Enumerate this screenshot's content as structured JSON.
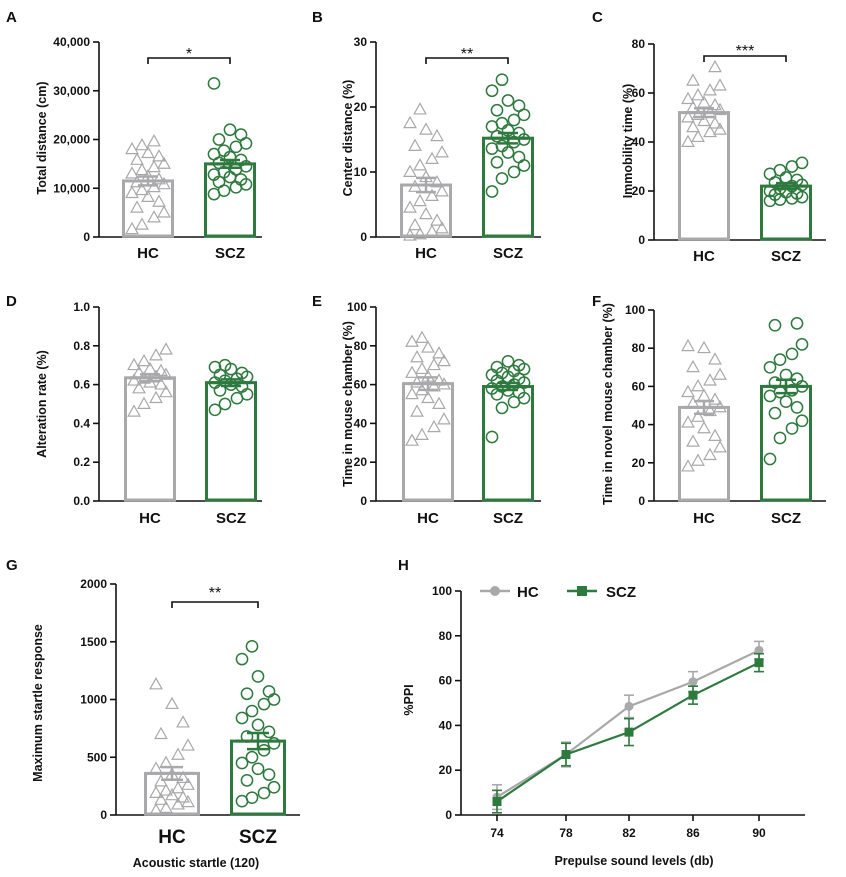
{
  "colors": {
    "hc": "#a9a9ab",
    "scz": "#2e7a3e",
    "text": "#111111"
  },
  "chart_data": [
    {
      "panel": "A",
      "type": "bar",
      "ylabel": "Total distance (cm)",
      "ylim": [
        0,
        40000
      ],
      "yticks": [
        0,
        10000,
        20000,
        30000,
        40000
      ],
      "ytick_labels": [
        "0",
        "10,000",
        "20,000",
        "30,000",
        "40,000"
      ],
      "categories": [
        "HC",
        "SCZ"
      ],
      "values": [
        11500,
        15000
      ],
      "sem": [
        900,
        800
      ],
      "significance": "*",
      "points": [
        [
          1600,
          2500,
          4000,
          5000,
          6000,
          7200,
          8200,
          9000,
          9600,
          10200,
          10800,
          11200,
          11800,
          12400,
          13000,
          13700,
          14300,
          15000,
          15800,
          16500,
          17200,
          18000,
          18800,
          19600
        ],
        [
          8800,
          9500,
          10200,
          10800,
          11300,
          11800,
          12300,
          12800,
          13300,
          13900,
          14500,
          15200,
          15800,
          16400,
          17000,
          17700,
          18500,
          19200,
          20000,
          21000,
          22000,
          31500
        ]
      ]
    },
    {
      "panel": "B",
      "type": "bar",
      "ylabel": "Center distance (%)",
      "ylim": [
        0,
        30
      ],
      "yticks": [
        0,
        10,
        20,
        30
      ],
      "ytick_labels": [
        "0",
        "10",
        "20",
        "30"
      ],
      "categories": [
        "HC",
        "SCZ"
      ],
      "values": [
        8,
        15.2
      ],
      "sem": [
        1.1,
        0.8
      ],
      "significance": "**",
      "points": [
        [
          0.2,
          0.4,
          0.8,
          1.3,
          1.8,
          2.5,
          3.5,
          4.5,
          5.5,
          6.3,
          7,
          7.7,
          8.4,
          9.2,
          10,
          11,
          12,
          13,
          14,
          15.5,
          16.5,
          17.5,
          19.6
        ],
        [
          7,
          9,
          10,
          11,
          11.5,
          12.3,
          13,
          13.6,
          14,
          14.6,
          15,
          15.5,
          16,
          16.4,
          17,
          17.5,
          18,
          18.8,
          19.5,
          20.2,
          21,
          22.5,
          24.2
        ]
      ]
    },
    {
      "panel": "C",
      "type": "bar",
      "ylabel": "Immobility time (%)",
      "ylim": [
        0,
        80
      ],
      "yticks": [
        0,
        20,
        40,
        60,
        80
      ],
      "ytick_labels": [
        "0",
        "20",
        "40",
        "60",
        "80"
      ],
      "categories": [
        "HC",
        "SCZ"
      ],
      "values": [
        52,
        22
      ],
      "sem": [
        1.8,
        1.2
      ],
      "significance": "***",
      "points": [
        [
          40,
          42,
          44,
          45,
          46,
          47.5,
          48.5,
          50,
          51,
          52,
          53,
          54,
          55,
          56,
          57.5,
          59,
          61,
          63,
          65,
          70.5
        ],
        [
          16,
          16.5,
          17,
          17.5,
          18.5,
          19,
          19.5,
          20,
          21,
          22,
          22.5,
          23.5,
          24.5,
          25.5,
          27,
          28.5,
          30,
          31.5
        ]
      ]
    },
    {
      "panel": "D",
      "type": "bar",
      "ylabel": "Alteration rate (%)",
      "ylim": [
        0,
        1
      ],
      "yticks": [
        0,
        0.2,
        0.4,
        0.6,
        0.8,
        1.0
      ],
      "ytick_labels": [
        "0.0",
        "0.2",
        "0.4",
        "0.6",
        "0.8",
        "1.0"
      ],
      "categories": [
        "HC",
        "SCZ"
      ],
      "values": [
        0.635,
        0.61
      ],
      "sem": [
        0.018,
        0.017
      ],
      "significance": "",
      "points": [
        [
          0.46,
          0.5,
          0.53,
          0.56,
          0.58,
          0.6,
          0.61,
          0.62,
          0.63,
          0.64,
          0.65,
          0.66,
          0.67,
          0.68,
          0.7,
          0.72,
          0.75,
          0.78
        ],
        [
          0.47,
          0.5,
          0.53,
          0.55,
          0.57,
          0.59,
          0.6,
          0.61,
          0.62,
          0.63,
          0.64,
          0.65,
          0.66,
          0.68,
          0.69,
          0.7
        ]
      ]
    },
    {
      "panel": "E",
      "type": "bar",
      "ylabel": "Time in mouse chamber (%)",
      "ylim": [
        0,
        100
      ],
      "yticks": [
        0,
        20,
        40,
        60,
        80,
        100
      ],
      "ytick_labels": [
        "0",
        "20",
        "40",
        "60",
        "80",
        "100"
      ],
      "categories": [
        "HC",
        "SCZ"
      ],
      "values": [
        60.5,
        59
      ],
      "sem": [
        3.2,
        1.8
      ],
      "significance": "",
      "points": [
        [
          31,
          34,
          38,
          42,
          46,
          50,
          53,
          55,
          57,
          59,
          60,
          61,
          62,
          64,
          66,
          68,
          70,
          72,
          74,
          76,
          79,
          82,
          84
        ],
        [
          33,
          48,
          51,
          53,
          55,
          56,
          57,
          58,
          59,
          60,
          61,
          62,
          63,
          64,
          65,
          66,
          67,
          68,
          69,
          70,
          72
        ]
      ]
    },
    {
      "panel": "F",
      "type": "bar",
      "ylabel": "Time in novel mouse chamber (%)",
      "ylim": [
        0,
        100
      ],
      "yticks": [
        0,
        20,
        40,
        60,
        80,
        100
      ],
      "ytick_labels": [
        "0",
        "20",
        "40",
        "60",
        "80",
        "100"
      ],
      "categories": [
        "HC",
        "SCZ"
      ],
      "values": [
        49,
        60
      ],
      "sem": [
        3.3,
        3.5
      ],
      "significance": "",
      "points": [
        [
          18,
          21,
          24,
          28,
          31,
          34,
          38,
          41,
          44,
          47,
          49,
          51,
          53,
          55,
          57,
          60,
          63,
          66,
          70,
          74,
          80,
          81
        ],
        [
          22,
          33,
          38,
          42,
          46,
          49,
          52,
          55,
          57,
          58,
          60,
          62,
          64,
          66,
          70,
          74,
          77,
          82,
          92,
          93
        ]
      ]
    },
    {
      "panel": "G",
      "type": "bar",
      "ylabel": "Maximum startle response",
      "xlabel": "Acoustic startle (120)",
      "ylim": [
        0,
        2000
      ],
      "yticks": [
        0,
        500,
        1000,
        1500,
        2000
      ],
      "ytick_labels": [
        "0",
        "500",
        "1000",
        "1500",
        "2000"
      ],
      "categories": [
        "HC",
        "SCZ"
      ],
      "values": [
        360,
        640
      ],
      "sem": [
        55,
        70
      ],
      "significance": "**",
      "points": [
        [
          40,
          60,
          90,
          110,
          130,
          150,
          170,
          190,
          210,
          230,
          260,
          290,
          320,
          350,
          400,
          450,
          520,
          600,
          700,
          800,
          960,
          1130
        ],
        [
          120,
          150,
          190,
          240,
          300,
          350,
          400,
          450,
          500,
          560,
          620,
          680,
          720,
          780,
          840,
          900,
          960,
          1000,
          1050,
          1070,
          1200,
          1350,
          1460
        ]
      ]
    },
    {
      "panel": "H",
      "type": "line",
      "ylabel": "%PPI",
      "xlabel": "Prepulse sound levels (db)",
      "ylim": [
        0,
        100
      ],
      "yticks": [
        0,
        20,
        40,
        60,
        80,
        100
      ],
      "ytick_labels": [
        "0",
        "20",
        "40",
        "60",
        "80",
        "100"
      ],
      "x": [
        74,
        78,
        82,
        86,
        90
      ],
      "series": [
        {
          "name": "HC",
          "values": [
            8,
            27,
            48.5,
            59.5,
            73.5
          ],
          "sem": [
            5.5,
            5.5,
            5,
            4.5,
            4
          ]
        },
        {
          "name": "SCZ",
          "values": [
            6,
            27,
            37,
            53.5,
            68
          ],
          "sem": [
            5,
            5,
            6,
            4,
            4
          ]
        }
      ]
    }
  ]
}
